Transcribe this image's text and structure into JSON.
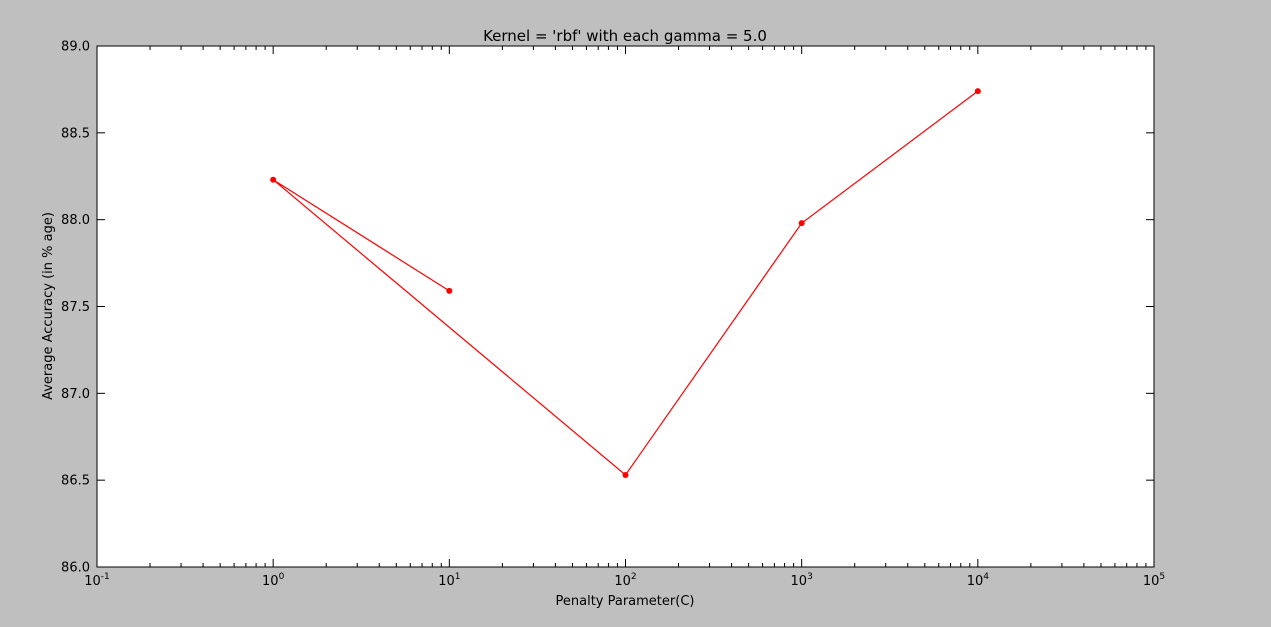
{
  "chart_data": {
    "type": "line",
    "title": "Kernel = 'rbf' with each gamma = 5.0",
    "xlabel": "Penalty Parameter(C)",
    "ylabel": "Average Accuracy (in % age)",
    "x_scale": "log",
    "xlim": [
      0.1,
      100000
    ],
    "ylim": [
      86.0,
      89.0
    ],
    "x_ticks": [
      {
        "base": "10",
        "exp": "-1"
      },
      {
        "base": "10",
        "exp": "0"
      },
      {
        "base": "10",
        "exp": "1"
      },
      {
        "base": "10",
        "exp": "2"
      },
      {
        "base": "10",
        "exp": "3"
      },
      {
        "base": "10",
        "exp": "4"
      },
      {
        "base": "10",
        "exp": "5"
      }
    ],
    "y_ticks": [
      "86.0",
      "86.5",
      "87.0",
      "87.5",
      "88.0",
      "88.5",
      "89.0"
    ],
    "grid": false,
    "series": [
      {
        "color": "#ff0000",
        "x": [
          10,
          1,
          100,
          1000,
          10000
        ],
        "y": [
          87.59,
          88.23,
          86.53,
          87.98,
          88.74
        ]
      }
    ]
  }
}
